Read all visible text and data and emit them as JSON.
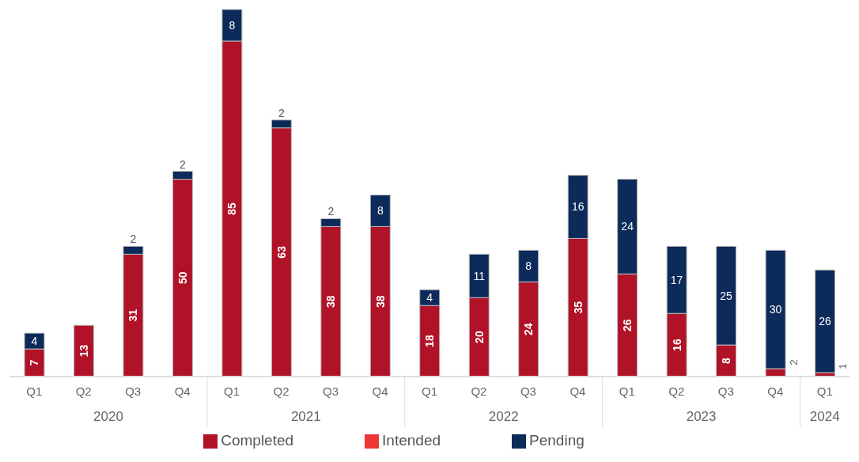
{
  "chart_data": {
    "type": "bar",
    "stacked": true,
    "data_labels": true,
    "legend": "bottom",
    "categories": [
      "Q1",
      "Q2",
      "Q3",
      "Q4",
      "Q1",
      "Q2",
      "Q3",
      "Q4",
      "Q1",
      "Q2",
      "Q3",
      "Q4",
      "Q1",
      "Q2",
      "Q3",
      "Q4",
      "Q1"
    ],
    "annotations": [
      "2020",
      "2021",
      "2022",
      "2023",
      "2024"
    ],
    "series": [
      {
        "name": "Completed",
        "color": "#b01228",
        "values": [
          7,
          13,
          31,
          50,
          85,
          63,
          38,
          38,
          18,
          20,
          24,
          35,
          26,
          16,
          8,
          2,
          1
        ]
      },
      {
        "name": "Intended",
        "color": "#ee3535",
        "values": [
          null,
          null,
          null,
          null,
          null,
          null,
          null,
          null,
          null,
          null,
          null,
          null,
          null,
          null,
          null,
          null,
          null
        ]
      },
      {
        "name": "Pending",
        "color": "#0c2a5a",
        "values": [
          4,
          null,
          2,
          2,
          8,
          2,
          2,
          8,
          4,
          11,
          8,
          16,
          24,
          17,
          25,
          30,
          26
        ]
      }
    ]
  }
}
